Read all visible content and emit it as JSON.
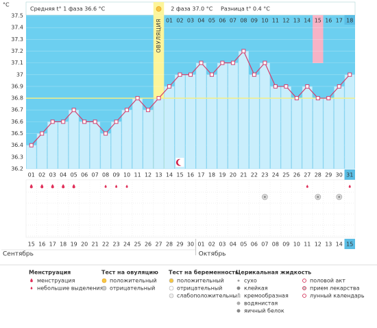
{
  "chart_data": {
    "type": "line",
    "unit_label": "°C",
    "header": {
      "phase1": "Средняя t° 1 фаза 36.6 °C",
      "phase2": "2 фаза 37.0 °C",
      "difference": "Разница t° 0.4 °C"
    },
    "ovulation_label": "ОВУЛЯЦИЯ",
    "ovulation_day": "13",
    "highlight_day": "28",
    "today": "31",
    "categories": [
      "01",
      "02",
      "03",
      "04",
      "05",
      "06",
      "07",
      "08",
      "09",
      "10",
      "11",
      "12",
      "13",
      "14",
      "15",
      "16",
      "17",
      "18",
      "19",
      "20",
      "21",
      "22",
      "23",
      "24",
      "25",
      "26",
      "27",
      "28",
      "29",
      "30",
      "31"
    ],
    "values": [
      36.4,
      36.5,
      36.6,
      36.6,
      36.7,
      36.6,
      36.6,
      36.5,
      36.6,
      36.7,
      36.8,
      36.7,
      36.8,
      36.9,
      37.0,
      37.0,
      37.1,
      37.0,
      37.1,
      37.1,
      37.2,
      37.0,
      37.1,
      36.9,
      36.9,
      36.8,
      36.9,
      36.8,
      36.8,
      36.9,
      37.0
    ],
    "phase2_days": [
      "01",
      "02",
      "03",
      "04",
      "05",
      "06",
      "07",
      "08",
      "09",
      "10",
      "11",
      "12",
      "13",
      "14",
      "15",
      "16",
      "17",
      "18"
    ],
    "dates": [
      "15",
      "16",
      "17",
      "18",
      "19",
      "20",
      "21",
      "22",
      "23",
      "24",
      "25",
      "26",
      "27",
      "28",
      "29",
      "30",
      "01",
      "02",
      "03",
      "04",
      "05",
      "06",
      "07",
      "08",
      "09",
      "10",
      "11",
      "12",
      "13",
      "14",
      "15"
    ],
    "date_colors": [
      "#333",
      "#333",
      "#d0204a",
      "#d0204a",
      "#333",
      "#333",
      "#333",
      "#333",
      "#333",
      "#d0204a",
      "#d0204a",
      "#333",
      "#333",
      "#333",
      "#333",
      "#333",
      "#d0204a",
      "#d0204a",
      "#333",
      "#333",
      "#333",
      "#333",
      "#333",
      "#d0204a",
      "#d0204a",
      "#333",
      "#333",
      "#333",
      "#333",
      "#333",
      "#333"
    ],
    "months": [
      "Сентябрь",
      "Октябрь"
    ],
    "cover_line": 36.8,
    "color": "#d2406e",
    "ylim": [
      36.2,
      37.5
    ],
    "yticks": [
      36.2,
      36.3,
      36.4,
      36.5,
      36.6,
      36.7,
      36.8,
      36.9,
      37,
      37.1,
      37.2,
      37.3,
      37.4,
      37.5
    ],
    "grid": true,
    "events": [
      {
        "day": "01",
        "kind": "menstruation"
      },
      {
        "day": "02",
        "kind": "menstruation"
      },
      {
        "day": "03",
        "kind": "menstruation"
      },
      {
        "day": "04",
        "kind": "menstruation"
      },
      {
        "day": "05",
        "kind": "menstruation"
      },
      {
        "day": "08",
        "kind": "spotting"
      },
      {
        "day": "09",
        "kind": "spotting"
      },
      {
        "day": "10",
        "kind": "spotting"
      },
      {
        "day": "27",
        "kind": "spotting"
      },
      {
        "day": "31",
        "kind": "spotting"
      },
      {
        "day": "23",
        "kind": "test-negative"
      },
      {
        "day": "28",
        "kind": "test-negative"
      },
      {
        "day": "30",
        "kind": "test-negative"
      },
      {
        "day": "15",
        "kind": "moon"
      }
    ],
    "legend": [
      {
        "title": "Менструация",
        "items": [
          "менструация",
          "небольшие выделения"
        ]
      },
      {
        "title": "Тест на овуляцию",
        "items": [
          "положительный",
          "отрицательный"
        ]
      },
      {
        "title": "Тест на беременность",
        "items": [
          "положительный",
          "отрицательный",
          "слабоположительный"
        ]
      },
      {
        "title": "Церикальная жидкость",
        "items": [
          "сухо",
          "клейкая",
          "кремообразная",
          "водянистая",
          "яичный белок"
        ]
      },
      {
        "items": [
          "половой акт",
          "прием лекарства",
          "лунный календарь"
        ]
      }
    ]
  }
}
